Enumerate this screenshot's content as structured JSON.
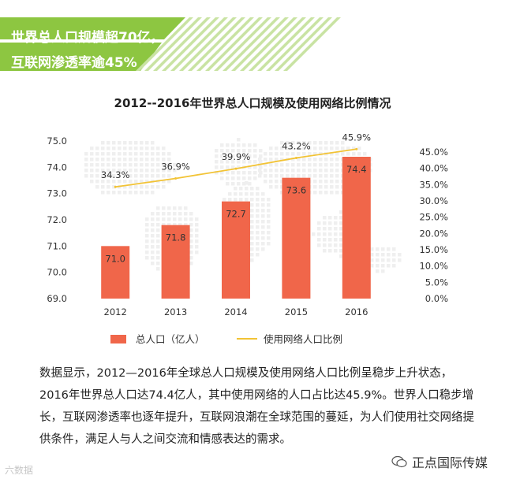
{
  "header": {
    "line1": "世界总人口规模超70亿，",
    "line2": "互联网渗透率逾45%",
    "colors": {
      "main": "#8dc641",
      "light": "#c9e3a3"
    }
  },
  "chart_title": "2012--2016年世界总人口规模及使用网络比例情况",
  "chart_data": {
    "type": "bar",
    "title": "2012--2016年世界总人口规模及使用网络比例情况",
    "categories": [
      "2012",
      "2013",
      "2014",
      "2015",
      "2016"
    ],
    "series": [
      {
        "name": "总人口（亿人）",
        "type": "bar",
        "axis": "left",
        "values": [
          71.0,
          71.8,
          72.7,
          73.6,
          74.4
        ],
        "labels": [
          "71.0",
          "71.8",
          "72.7",
          "73.6",
          "74.4"
        ],
        "color": "#f0664a"
      },
      {
        "name": "使用网络人口比例",
        "type": "line",
        "axis": "right",
        "values": [
          34.3,
          36.9,
          39.9,
          43.2,
          45.9
        ],
        "labels": [
          "34.3%",
          "36.9%",
          "39.9%",
          "43.2%",
          "45.9%"
        ],
        "color": "#f2c335"
      }
    ],
    "left_axis": {
      "ylim": [
        69.0,
        75.0
      ],
      "ticks": [
        "69.0",
        "70.0",
        "71.0",
        "72.0",
        "73.0",
        "74.0",
        "75.0"
      ]
    },
    "right_axis": {
      "ylim": [
        0,
        45
      ],
      "ticks": [
        "0.0%",
        "5.0%",
        "10.0%",
        "15.0%",
        "20.0%",
        "25.0%",
        "30.0%",
        "35.0%",
        "40.0%",
        "45.0%"
      ]
    },
    "legend": [
      "总人口（亿人）",
      "使用网络人口比例"
    ],
    "legend_position": "bottom",
    "grid": false
  },
  "body_text": "数据显示，2012—2016年全球总人口规模及使用网络人口比例呈稳步上升状态，2016年世界总人口达74.4亿人，其中使用网络的人口占比达45.9%。世界人口稳步增长，互联网渗透率也逐年提升，互联网浪潮在全球范围的蔓延，为人们使用社交网络提供条件，满足人与人之间交流和情感表达的需求。",
  "watermark_left": "六数据",
  "watermark_right": "正点国际传媒"
}
